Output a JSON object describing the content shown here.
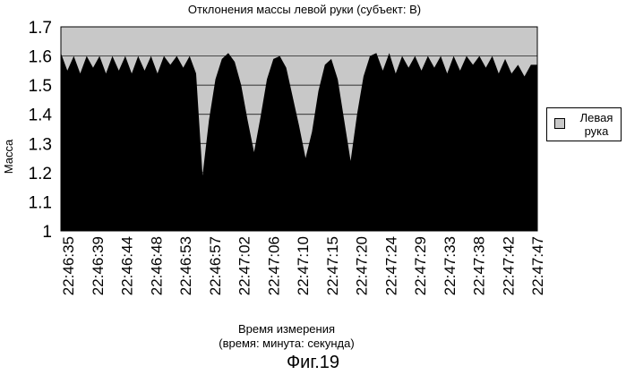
{
  "chart_data": {
    "type": "area",
    "title": "Отклонения массы левой руки (субъект: В)",
    "xlabel_line1": "Время измерения",
    "xlabel_line2": "(время: минута: секунда)",
    "ylabel": "Масса",
    "ylim": [
      1,
      1.7
    ],
    "yticks": [
      "1.7",
      "1.6",
      "1.5",
      "1.4",
      "1.3",
      "1.2",
      "1.1",
      "1"
    ],
    "grid": "horizontal",
    "legend_position": "right",
    "colors": {
      "plot_background": "#c8c8c8",
      "series_fill": "#000000",
      "gridline": "#000000"
    },
    "x_tick_labels": [
      "22:46:35",
      "22:46:39",
      "22:46:44",
      "22:46:48",
      "22:46:53",
      "22:46:57",
      "22:47:02",
      "22:47:06",
      "22:47:10",
      "22:47:15",
      "22:47:20",
      "22:47:24",
      "22:47:29",
      "22:47:33",
      "22:47:38",
      "22:47:42",
      "22:47:47"
    ],
    "series": [
      {
        "name": "Левая рука",
        "x": [
          "22:46:35",
          "22:46:36",
          "22:46:37",
          "22:46:38",
          "22:46:39",
          "22:46:40",
          "22:46:41",
          "22:46:42",
          "22:46:43",
          "22:46:44",
          "22:46:45",
          "22:46:46",
          "22:46:47",
          "22:46:48",
          "22:46:49",
          "22:46:50",
          "22:46:51",
          "22:46:52",
          "22:46:53",
          "22:46:54",
          "22:46:55",
          "22:46:56",
          "22:46:57",
          "22:46:58",
          "22:46:59",
          "22:47:00",
          "22:47:01",
          "22:47:02",
          "22:47:03",
          "22:47:04",
          "22:47:05",
          "22:47:06",
          "22:47:07",
          "22:47:08",
          "22:47:09",
          "22:47:10",
          "22:47:11",
          "22:47:12",
          "22:47:13",
          "22:47:14",
          "22:47:15",
          "22:47:16",
          "22:47:17",
          "22:47:18",
          "22:47:19",
          "22:47:20",
          "22:47:21",
          "22:47:22",
          "22:47:23",
          "22:47:24",
          "22:47:25",
          "22:47:26",
          "22:47:27",
          "22:47:28",
          "22:47:29",
          "22:47:30",
          "22:47:31",
          "22:47:32",
          "22:47:33",
          "22:47:34",
          "22:47:35",
          "22:47:36",
          "22:47:37",
          "22:47:38",
          "22:47:39",
          "22:47:40",
          "22:47:41",
          "22:47:42",
          "22:47:43",
          "22:47:44",
          "22:47:45",
          "22:47:46",
          "22:47:47",
          "22:47:48",
          "22:47:49"
        ],
        "values": [
          1.61,
          1.55,
          1.6,
          1.54,
          1.6,
          1.56,
          1.6,
          1.54,
          1.6,
          1.55,
          1.6,
          1.54,
          1.6,
          1.55,
          1.6,
          1.54,
          1.6,
          1.57,
          1.6,
          1.56,
          1.6,
          1.54,
          1.19,
          1.38,
          1.52,
          1.59,
          1.61,
          1.58,
          1.5,
          1.38,
          1.27,
          1.39,
          1.52,
          1.59,
          1.6,
          1.56,
          1.46,
          1.36,
          1.25,
          1.34,
          1.48,
          1.57,
          1.59,
          1.52,
          1.38,
          1.24,
          1.4,
          1.53,
          1.6,
          1.61,
          1.55,
          1.61,
          1.54,
          1.6,
          1.56,
          1.6,
          1.55,
          1.6,
          1.56,
          1.6,
          1.54,
          1.6,
          1.55,
          1.6,
          1.57,
          1.6,
          1.56,
          1.6,
          1.54,
          1.59,
          1.54,
          1.57,
          1.53,
          1.57,
          1.57
        ]
      }
    ]
  },
  "figure_label": "Фиг.19"
}
